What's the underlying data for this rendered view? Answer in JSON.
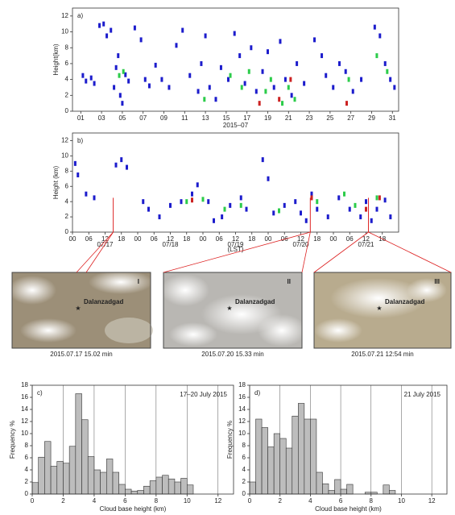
{
  "chart_data": [
    {
      "type": "scatter",
      "panel_label": "a)",
      "ylabel": "Height(km)",
      "xlabel": "2015–07",
      "xlim": [
        0.2,
        31.6
      ],
      "ylim": [
        0,
        13
      ],
      "yticks": [
        0,
        2,
        4,
        6,
        8,
        10,
        12
      ],
      "xticks": [
        {
          "value": 1,
          "label": "01"
        },
        {
          "value": 3,
          "label": "03"
        },
        {
          "value": 5,
          "label": "05"
        },
        {
          "value": 7,
          "label": "07"
        },
        {
          "value": 9,
          "label": "09"
        },
        {
          "value": 11,
          "label": "11"
        },
        {
          "value": 13,
          "label": "13"
        },
        {
          "value": 15,
          "label": "15"
        },
        {
          "value": 17,
          "label": "17"
        },
        {
          "value": 19,
          "label": "19"
        },
        {
          "value": 21,
          "label": "21"
        },
        {
          "value": 23,
          "label": "23"
        },
        {
          "value": 25,
          "label": "25"
        },
        {
          "value": 27,
          "label": "27"
        },
        {
          "value": 29,
          "label": "29"
        },
        {
          "value": 31,
          "label": "31"
        }
      ],
      "series": [
        {
          "color": "#1c1ccc",
          "x": [
            1.2,
            1.5,
            2.0,
            2.3,
            2.8,
            3.2,
            3.5,
            3.9,
            4.2,
            4.4,
            4.6,
            4.8,
            5.0,
            5.3,
            5.6,
            6.2,
            6.8,
            7.2,
            7.6,
            8.2,
            8.8,
            9.5,
            10.2,
            10.8,
            11.5,
            12.3,
            12.6,
            13.0,
            13.4,
            14.0,
            14.5,
            15.2,
            15.8,
            16.3,
            16.8,
            17.4,
            17.9,
            18.5,
            19.0,
            19.6,
            20.2,
            20.7,
            21.3,
            21.8,
            22.5,
            23.5,
            24.2,
            24.6,
            25.3,
            25.9,
            26.5,
            27.2,
            28.0,
            29.3,
            29.8,
            30.3,
            30.8,
            31.2
          ],
          "y": [
            4.5,
            3.8,
            4.2,
            3.5,
            10.8,
            11,
            9.5,
            10.2,
            3,
            5.5,
            7,
            2,
            1,
            4.6,
            3.8,
            10.5,
            9,
            4,
            3.2,
            5.8,
            4,
            3,
            8.3,
            10.2,
            4.5,
            2.5,
            6,
            9.5,
            3,
            1.5,
            5.5,
            4,
            9.8,
            7,
            3.5,
            8,
            2.5,
            5,
            7.5,
            3,
            8.8,
            4,
            2,
            6,
            3.5,
            9,
            7,
            4.5,
            3,
            6,
            5,
            2.5,
            4,
            10.6,
            9.5,
            6,
            4,
            3
          ]
        },
        {
          "color": "#2ccc4a",
          "x": [
            4.7,
            5.1,
            12.9,
            15.4,
            16.5,
            17.2,
            18.8,
            19.3,
            20.4,
            21.0,
            21.6,
            26.8,
            29.5,
            30.5
          ],
          "y": [
            4.5,
            5,
            1.5,
            4.5,
            3,
            5,
            2.5,
            4,
            1,
            3,
            1.5,
            4,
            7,
            5
          ]
        },
        {
          "color": "#cc2222",
          "x": [
            18.2,
            20.1,
            21.2,
            26.6
          ],
          "y": [
            1,
            1.5,
            4,
            1
          ]
        }
      ]
    },
    {
      "type": "scatter",
      "panel_label": "b)",
      "ylabel": "Height (km)",
      "xlabel": "(LST)",
      "xlim": [
        0,
        120
      ],
      "ylim": [
        0,
        13
      ],
      "yticks": [
        0,
        2,
        4,
        6,
        8,
        10,
        12
      ],
      "xticks": [
        {
          "value": 0,
          "label": "00"
        },
        {
          "value": 6,
          "label": "06"
        },
        {
          "value": 12,
          "label": "12"
        },
        {
          "value": 18,
          "label": "18"
        },
        {
          "value": 24,
          "label": "00"
        },
        {
          "value": 30,
          "label": "06"
        },
        {
          "value": 36,
          "label": "12"
        },
        {
          "value": 42,
          "label": "18"
        },
        {
          "value": 48,
          "label": "00"
        },
        {
          "value": 54,
          "label": "06"
        },
        {
          "value": 60,
          "label": "12"
        },
        {
          "value": 66,
          "label": "18"
        },
        {
          "value": 72,
          "label": "00"
        },
        {
          "value": 78,
          "label": "06"
        },
        {
          "value": 84,
          "label": "12"
        },
        {
          "value": 90,
          "label": "18"
        },
        {
          "value": 96,
          "label": "00"
        },
        {
          "value": 102,
          "label": "06"
        },
        {
          "value": 108,
          "label": "12"
        },
        {
          "value": 114,
          "label": "18"
        }
      ],
      "date_ticks": [
        {
          "value": 12,
          "label": "07/17"
        },
        {
          "value": 36,
          "label": "07/18"
        },
        {
          "value": 60,
          "label": "07/19"
        },
        {
          "value": 84,
          "label": "07/20"
        },
        {
          "value": 108,
          "label": "07/21"
        }
      ],
      "event_times": [
        15,
        87.5,
        108.9
      ],
      "series": [
        {
          "color": "#1c1ccc",
          "x": [
            1,
            2,
            5,
            8,
            16,
            18,
            20,
            26,
            28,
            32,
            36,
            40,
            44,
            46,
            50,
            52,
            55,
            58,
            62,
            64,
            70,
            72,
            74,
            78,
            82,
            84,
            86,
            88,
            90,
            94,
            98,
            102,
            106,
            108,
            110,
            112,
            115,
            117
          ],
          "y": [
            9,
            7.5,
            5,
            4.5,
            8.8,
            9.5,
            8.5,
            4,
            3,
            2,
            3.5,
            4,
            5,
            6.2,
            4,
            1.5,
            2,
            3.5,
            4.5,
            3,
            9.5,
            7,
            2.5,
            3.5,
            4,
            2.5,
            1.5,
            5,
            3,
            2,
            4.5,
            3,
            2,
            4,
            1.5,
            3,
            4.2,
            2
          ]
        },
        {
          "color": "#2ccc4a",
          "x": [
            42,
            48,
            56,
            62,
            76,
            90,
            100,
            104,
            112
          ],
          "y": [
            4,
            4.3,
            3,
            3.5,
            2.8,
            4,
            5,
            3.5,
            4.5
          ]
        },
        {
          "color": "#cc2222",
          "x": [
            44,
            88,
            108,
            113
          ],
          "y": [
            4.2,
            4.5,
            3,
            4.5
          ]
        }
      ]
    },
    {
      "type": "histogram",
      "panel_label": "c)",
      "title": "17–20 July 2015",
      "ylabel": "Frequency %",
      "xlabel": "Cloud base height (km)",
      "color": "#bdbdbd",
      "xlim": [
        0,
        13
      ],
      "ylim": [
        0,
        18
      ],
      "xticks": [
        0,
        2,
        4,
        6,
        8,
        10,
        12
      ],
      "yticks": [
        0,
        2,
        4,
        6,
        8,
        10,
        12,
        14,
        16,
        18
      ],
      "grid": true,
      "bins": [
        0,
        0.4,
        0.8,
        1.2,
        1.6,
        2,
        2.4,
        2.8,
        3.2,
        3.6,
        4,
        4.4,
        4.8,
        5.2,
        5.6,
        6,
        6.4,
        6.8,
        7.2,
        7.6,
        8,
        8.4,
        8.8,
        9.2,
        9.6,
        10,
        10.4
      ],
      "values": [
        1.9,
        6.1,
        8.7,
        4.6,
        5.4,
        5.1,
        7.9,
        16.6,
        12.3,
        6.2,
        4.0,
        3.6,
        5.8,
        3.6,
        1.6,
        0.8,
        0.5,
        0.6,
        1.3,
        2.2,
        2.8,
        3.1,
        2.5,
        2.0,
        2.6,
        1.5
      ]
    },
    {
      "type": "histogram",
      "panel_label": "d)",
      "title": "21 July 2015",
      "ylabel": "Frequency %",
      "xlabel": "Cloud base height (km)",
      "color": "#bdbdbd",
      "xlim": [
        0,
        13
      ],
      "ylim": [
        0,
        18
      ],
      "xticks": [
        0,
        2,
        4,
        6,
        8,
        10,
        12
      ],
      "yticks": [
        0,
        2,
        4,
        6,
        8,
        10,
        12,
        14,
        16,
        18
      ],
      "grid": true,
      "bins": [
        0,
        0.4,
        0.8,
        1.2,
        1.6,
        2,
        2.4,
        2.8,
        3.2,
        3.6,
        4,
        4.4,
        4.8,
        5.2,
        5.6,
        6,
        6.4,
        6.8,
        7.2,
        7.6,
        8,
        8.4,
        8.8,
        9.2,
        9.6,
        10
      ],
      "values": [
        2.0,
        12.4,
        11.0,
        7.8,
        10.0,
        9.2,
        7.6,
        12.9,
        15.0,
        12.4,
        12.4,
        3.6,
        1.7,
        0.6,
        2.4,
        0.8,
        1.6,
        0,
        0,
        0.3,
        0.3,
        0,
        1.5,
        0.6,
        0
      ]
    }
  ],
  "images": [
    {
      "label": "I",
      "place": "Dalanzadgad",
      "caption": "2015.07.17 15.02 min"
    },
    {
      "label": "II",
      "place": "Dalanzadgad",
      "caption": "2015.07.20 15.33 min"
    },
    {
      "label": "III",
      "place": "Dalanzadgad",
      "caption": "2015.07.21 12:54 min"
    }
  ]
}
